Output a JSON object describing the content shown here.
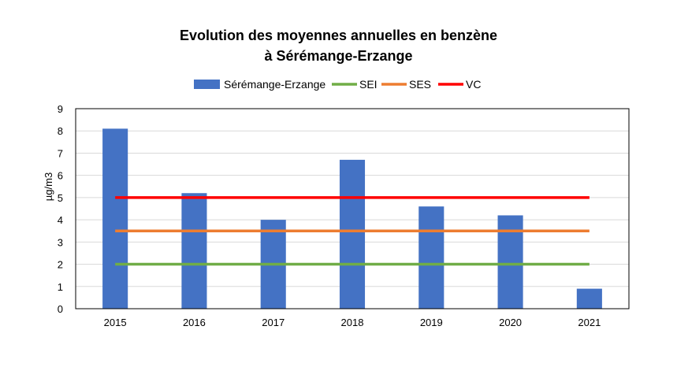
{
  "chart_data": {
    "type": "bar",
    "title_line1": "Evolution des moyennes annuelles en benzène",
    "title_line2": "à Sérémange-Erzange",
    "xlabel": "",
    "ylabel": "µg/m3",
    "categories": [
      "2015",
      "2016",
      "2017",
      "2018",
      "2019",
      "2020",
      "2021"
    ],
    "series": [
      {
        "name": "Sérémange-Erzange",
        "kind": "bar",
        "color": "#4472C4",
        "values": [
          8.1,
          5.2,
          4.0,
          6.7,
          4.6,
          4.2,
          0.9
        ]
      },
      {
        "name": "SEI",
        "kind": "line",
        "color": "#70AD47",
        "values": [
          2,
          2,
          2,
          2,
          2,
          2,
          2
        ]
      },
      {
        "name": "SES",
        "kind": "line",
        "color": "#ED7D31",
        "values": [
          3.5,
          3.5,
          3.5,
          3.5,
          3.5,
          3.5,
          3.5
        ]
      },
      {
        "name": "VC",
        "kind": "line",
        "color": "#FF0000",
        "values": [
          5,
          5,
          5,
          5,
          5,
          5,
          5
        ]
      }
    ],
    "ylim": [
      0,
      9
    ],
    "yticks": [
      "0",
      "1",
      "2",
      "3",
      "4",
      "5",
      "6",
      "7",
      "8",
      "9"
    ],
    "grid": true,
    "legend_position": "top"
  }
}
